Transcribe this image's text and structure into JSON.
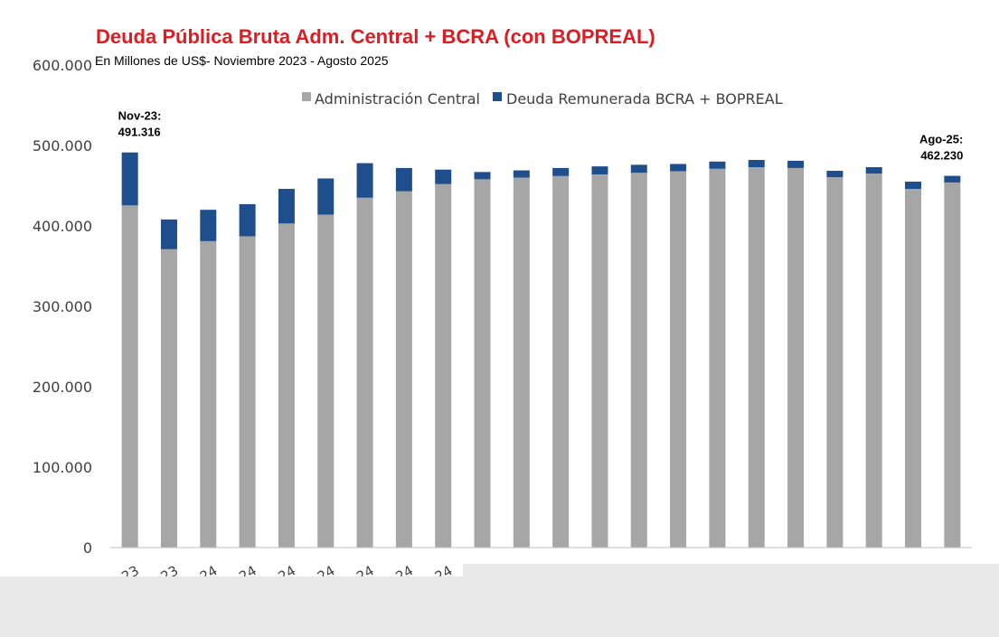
{
  "colors": {
    "title": "#e01b22",
    "admin_central": "#a6a6a6",
    "bcra": "#1f4e8c",
    "axis": "#bfbfbf",
    "overlay": "#e8e8e8"
  },
  "chart_data": {
    "type": "bar",
    "stacked": true,
    "title": "Deuda Pública Bruta Adm. Central + BCRA (con BOPREAL)",
    "subtitle": "En Millones de US$- Noviembre 2023 - Agosto 2025",
    "ylim": [
      0,
      600000
    ],
    "yticks": [
      "0",
      "100.000",
      "200.000",
      "300.000",
      "400.000",
      "500.000",
      "600.000"
    ],
    "xtick_fragments": [
      "23",
      "23",
      "24",
      "24",
      "24",
      "24",
      "24",
      "24",
      "24"
    ],
    "legend_position": "top-center",
    "grid": false,
    "series": [
      {
        "name": "Administración Central",
        "values": [
          425500,
          371000,
          381000,
          387000,
          403000,
          414000,
          435000,
          443000,
          452000,
          458000,
          460000,
          462000,
          464000,
          466000,
          468000,
          471000,
          473000,
          472000,
          460500,
          465000,
          446000,
          454000
        ]
      },
      {
        "name": "Deuda Remunerada BCRA + BOPREAL",
        "values": [
          65816,
          37000,
          39000,
          40000,
          43000,
          45000,
          43000,
          29000,
          18000,
          9000,
          9000,
          10000,
          10000,
          10000,
          9000,
          9000,
          9000,
          9000,
          8000,
          8000,
          9000,
          8230
        ]
      }
    ],
    "annotations": [
      {
        "bar_index": 0,
        "lines": [
          "Nov-23:",
          "491.316"
        ]
      },
      {
        "bar_index": 21,
        "lines": [
          "Ago-25:",
          "462.230"
        ]
      }
    ]
  }
}
